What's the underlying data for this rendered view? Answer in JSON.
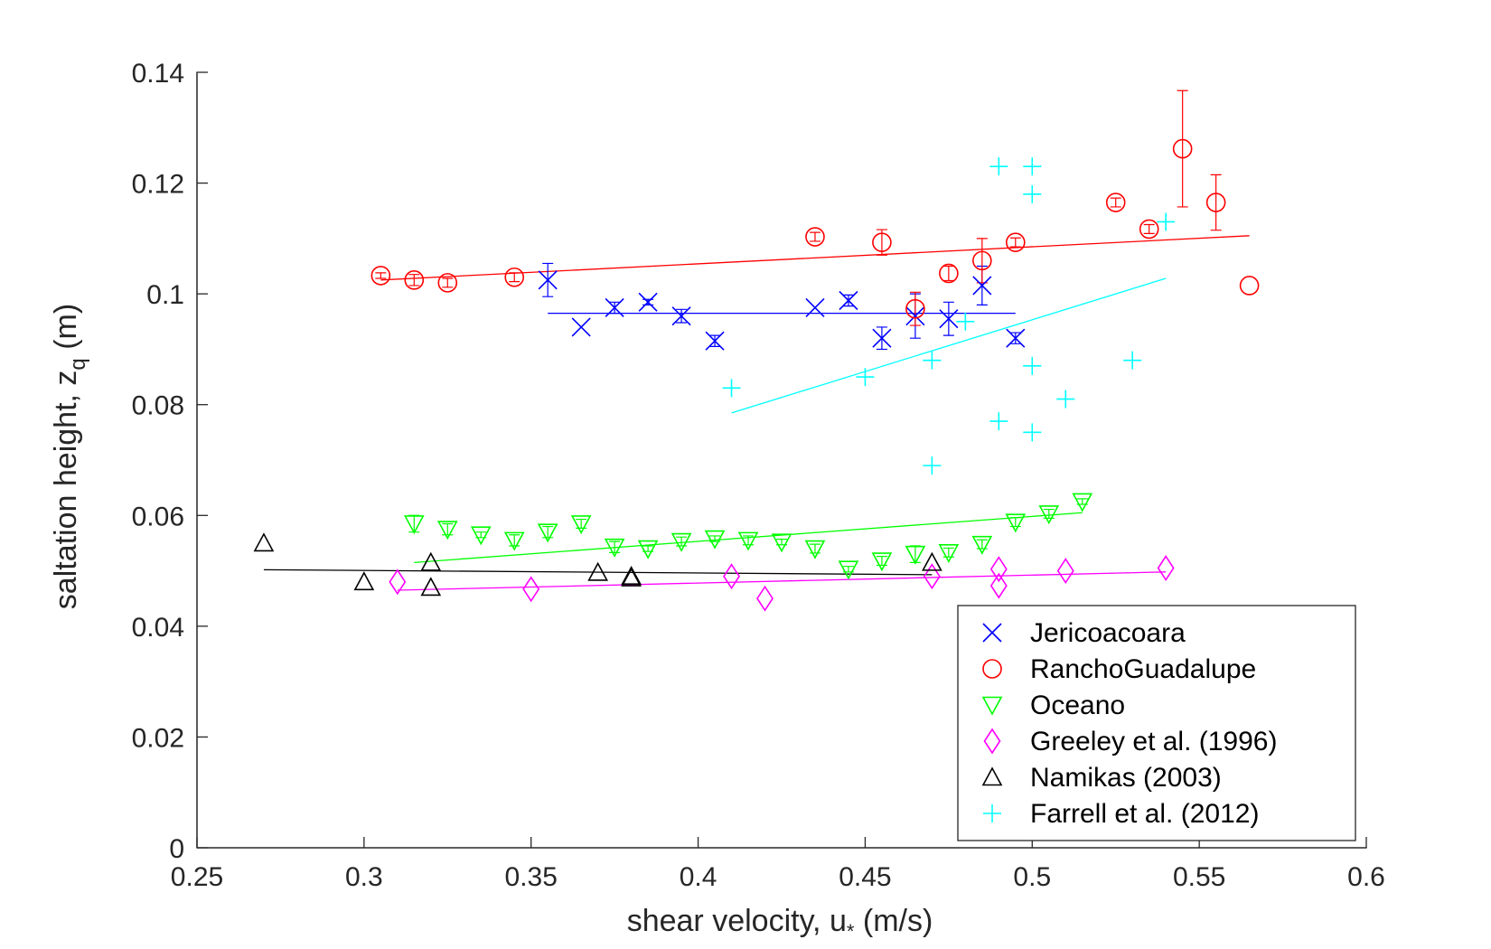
{
  "chart_data": {
    "type": "scatter",
    "title": "",
    "xlabel": "shear velocity, u",
    "xlabel_subscript": "*",
    "xlabel_suffix": " (m/s)",
    "ylabel": "saltation height, z",
    "ylabel_subscript": "q",
    "ylabel_suffix": " (m)",
    "xlim": [
      0.25,
      0.6
    ],
    "ylim": [
      0,
      0.14
    ],
    "xticks": [
      0.25,
      0.3,
      0.35,
      0.4,
      0.45,
      0.5,
      0.55,
      0.6
    ],
    "yticks": [
      0,
      0.02,
      0.04,
      0.06,
      0.08,
      0.1,
      0.12,
      0.14
    ],
    "xtick_labels": [
      "0.25",
      "0.3",
      "0.35",
      "0.4",
      "0.45",
      "0.5",
      "0.55",
      "0.6"
    ],
    "ytick_labels": [
      "0",
      "0.02",
      "0.04",
      "0.06",
      "0.08",
      "0.1",
      "0.12",
      "0.14"
    ],
    "grid": false,
    "legend_position": "bottom-right",
    "series": [
      {
        "name": "Jericoacoara",
        "marker": "x",
        "color": "#0000ff",
        "points": [
          {
            "x": 0.355,
            "y": 0.1025,
            "err": 0.003
          },
          {
            "x": 0.365,
            "y": 0.094,
            "err": 0
          },
          {
            "x": 0.375,
            "y": 0.0975,
            "err": 0.001
          },
          {
            "x": 0.385,
            "y": 0.0985,
            "err": 0.0005
          },
          {
            "x": 0.395,
            "y": 0.096,
            "err": 0.0012
          },
          {
            "x": 0.405,
            "y": 0.0915,
            "err": 0.001
          },
          {
            "x": 0.435,
            "y": 0.0975,
            "err": 0
          },
          {
            "x": 0.445,
            "y": 0.0988,
            "err": 0.001
          },
          {
            "x": 0.455,
            "y": 0.092,
            "err": 0.002
          },
          {
            "x": 0.465,
            "y": 0.096,
            "err": 0.004
          },
          {
            "x": 0.475,
            "y": 0.0955,
            "err": 0.003
          },
          {
            "x": 0.485,
            "y": 0.1015,
            "err": 0.0035
          },
          {
            "x": 0.495,
            "y": 0.092,
            "err": 0.001
          }
        ],
        "fit": {
          "x": [
            0.355,
            0.495
          ],
          "y": [
            0.0965,
            0.0965
          ]
        }
      },
      {
        "name": "RanchoGuadalupe",
        "marker": "circle",
        "color": "#ff0000",
        "points": [
          {
            "x": 0.305,
            "y": 0.1033,
            "err": 0.0005
          },
          {
            "x": 0.315,
            "y": 0.1025,
            "err": 0.001
          },
          {
            "x": 0.325,
            "y": 0.102,
            "err": 0.0008
          },
          {
            "x": 0.345,
            "y": 0.103,
            "err": 0.0008
          },
          {
            "x": 0.435,
            "y": 0.1103,
            "err": 0.0008
          },
          {
            "x": 0.455,
            "y": 0.1093,
            "err": 0.0023
          },
          {
            "x": 0.465,
            "y": 0.0973,
            "err": 0.003
          },
          {
            "x": 0.475,
            "y": 0.1037,
            "err": 0.0013
          },
          {
            "x": 0.485,
            "y": 0.106,
            "err": 0.004
          },
          {
            "x": 0.495,
            "y": 0.1093,
            "err": 0.0008
          },
          {
            "x": 0.525,
            "y": 0.1165,
            "err": 0.0008
          },
          {
            "x": 0.535,
            "y": 0.1117,
            "err": 0.0008
          },
          {
            "x": 0.545,
            "y": 0.1262,
            "err": 0.0105
          },
          {
            "x": 0.555,
            "y": 0.1165,
            "err": 0.005
          },
          {
            "x": 0.565,
            "y": 0.1015,
            "err": 0
          }
        ],
        "fit": {
          "x": [
            0.305,
            0.565
          ],
          "y": [
            0.1025,
            0.1105
          ]
        }
      },
      {
        "name": "Oceano",
        "marker": "triangle-down",
        "color": "#00ff00",
        "points": [
          {
            "x": 0.315,
            "y": 0.0585,
            "err": 0.0015
          },
          {
            "x": 0.325,
            "y": 0.0575,
            "err": 0.001
          },
          {
            "x": 0.335,
            "y": 0.0565,
            "err": 0.0005
          },
          {
            "x": 0.345,
            "y": 0.0555,
            "err": 0.001
          },
          {
            "x": 0.355,
            "y": 0.057,
            "err": 0.001
          },
          {
            "x": 0.365,
            "y": 0.0585,
            "err": 0.0008
          },
          {
            "x": 0.375,
            "y": 0.0543,
            "err": 0.001
          },
          {
            "x": 0.385,
            "y": 0.054,
            "err": 0.0005
          },
          {
            "x": 0.395,
            "y": 0.0553,
            "err": 0.0008
          },
          {
            "x": 0.405,
            "y": 0.0558,
            "err": 0.0005
          },
          {
            "x": 0.415,
            "y": 0.0555,
            "err": 0.0008
          },
          {
            "x": 0.425,
            "y": 0.0552,
            "err": 0.0005
          },
          {
            "x": 0.435,
            "y": 0.054,
            "err": 0.0008
          },
          {
            "x": 0.445,
            "y": 0.0503,
            "err": 0.0005
          },
          {
            "x": 0.455,
            "y": 0.0518,
            "err": 0.0008
          },
          {
            "x": 0.465,
            "y": 0.053,
            "err": 0.0015
          },
          {
            "x": 0.475,
            "y": 0.0533,
            "err": 0.0008
          },
          {
            "x": 0.485,
            "y": 0.0548,
            "err": 0.0008
          },
          {
            "x": 0.495,
            "y": 0.0588,
            "err": 0.0008
          },
          {
            "x": 0.505,
            "y": 0.0603,
            "err": 0.0008
          },
          {
            "x": 0.515,
            "y": 0.0625,
            "err": 0.0005
          }
        ],
        "fit": {
          "x": [
            0.315,
            0.515
          ],
          "y": [
            0.0515,
            0.0605
          ]
        }
      },
      {
        "name": "Greeley et al. (1996)",
        "marker": "diamond",
        "color": "#ff00ff",
        "points": [
          {
            "x": 0.31,
            "y": 0.048
          },
          {
            "x": 0.35,
            "y": 0.0467
          },
          {
            "x": 0.41,
            "y": 0.049
          },
          {
            "x": 0.42,
            "y": 0.045
          },
          {
            "x": 0.47,
            "y": 0.049
          },
          {
            "x": 0.49,
            "y": 0.0503
          },
          {
            "x": 0.49,
            "y": 0.0473
          },
          {
            "x": 0.51,
            "y": 0.05
          },
          {
            "x": 0.54,
            "y": 0.0505
          }
        ],
        "fit": {
          "x": [
            0.31,
            0.54
          ],
          "y": [
            0.0465,
            0.0498
          ]
        }
      },
      {
        "name": "Namikas (2003)",
        "marker": "triangle-up",
        "color": "#000000",
        "points": [
          {
            "x": 0.27,
            "y": 0.055
          },
          {
            "x": 0.3,
            "y": 0.048
          },
          {
            "x": 0.32,
            "y": 0.0515
          },
          {
            "x": 0.32,
            "y": 0.047
          },
          {
            "x": 0.37,
            "y": 0.0497
          },
          {
            "x": 0.38,
            "y": 0.049
          },
          {
            "x": 0.38,
            "y": 0.0487
          },
          {
            "x": 0.47,
            "y": 0.0515
          }
        ],
        "fit": {
          "x": [
            0.27,
            0.47
          ],
          "y": [
            0.0502,
            0.0493
          ]
        }
      },
      {
        "name": "Farrell et al. (2012)",
        "marker": "plus",
        "color": "#00ffff",
        "points": [
          {
            "x": 0.41,
            "y": 0.083
          },
          {
            "x": 0.45,
            "y": 0.085
          },
          {
            "x": 0.47,
            "y": 0.088
          },
          {
            "x": 0.47,
            "y": 0.069
          },
          {
            "x": 0.48,
            "y": 0.095
          },
          {
            "x": 0.49,
            "y": 0.123
          },
          {
            "x": 0.49,
            "y": 0.077
          },
          {
            "x": 0.5,
            "y": 0.123
          },
          {
            "x": 0.5,
            "y": 0.118
          },
          {
            "x": 0.5,
            "y": 0.087
          },
          {
            "x": 0.5,
            "y": 0.075
          },
          {
            "x": 0.51,
            "y": 0.081
          },
          {
            "x": 0.53,
            "y": 0.088
          },
          {
            "x": 0.54,
            "y": 0.113
          }
        ],
        "fit": {
          "x": [
            0.41,
            0.54
          ],
          "y": [
            0.0785,
            0.1028
          ]
        }
      }
    ]
  }
}
